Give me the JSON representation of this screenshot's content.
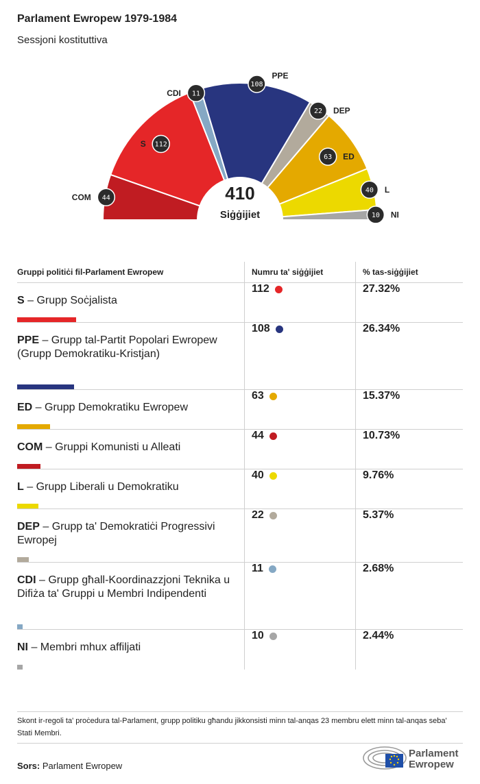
{
  "header": {
    "title": "Parlament Ewropew 1979-1984",
    "subtitle": "Sessjoni kostituttiva"
  },
  "chart_data": {
    "type": "pie",
    "subtype": "parliament-hemicycle",
    "total": 410,
    "total_label": "Siġġijiet",
    "series": [
      {
        "abbr": "COM",
        "seats": 44,
        "color": "#c01c22"
      },
      {
        "abbr": "S",
        "seats": 112,
        "color": "#e52628"
      },
      {
        "abbr": "CDI",
        "seats": 11,
        "color": "#85a8c4"
      },
      {
        "abbr": "PPE",
        "seats": 108,
        "color": "#28357f"
      },
      {
        "abbr": "DEP",
        "seats": 22,
        "color": "#b2aa9c"
      },
      {
        "abbr": "ED",
        "seats": 63,
        "color": "#e4a900"
      },
      {
        "abbr": "L",
        "seats": 40,
        "color": "#ecd900"
      },
      {
        "abbr": "NI",
        "seats": 10,
        "color": "#a6a6a6"
      }
    ]
  },
  "table": {
    "headers": [
      "Gruppi politiċi fil-Parlament Ewropew",
      "Numru ta' siġġijiet",
      "% tas-siġġijiet"
    ],
    "rows": [
      {
        "abbr": "S",
        "name": " – Grupp Soċjalista",
        "seats": "112",
        "pct": "27.32%",
        "color": "#e52628",
        "fraction": 0.2732
      },
      {
        "abbr": "PPE",
        "name": " – Grupp tal-Partit Popolari Ewropew (Grupp Demokratiku-Kristjan)",
        "seats": "108",
        "pct": "26.34%",
        "color": "#28357f",
        "fraction": 0.2634
      },
      {
        "abbr": "ED",
        "name": " – Grupp Demokratiku Ewropew",
        "seats": "63",
        "pct": "15.37%",
        "color": "#e4a900",
        "fraction": 0.1537
      },
      {
        "abbr": "COM",
        "name": " – Gruppi Komunisti u Alleati",
        "seats": "44",
        "pct": "10.73%",
        "color": "#c01c22",
        "fraction": 0.1073
      },
      {
        "abbr": "L",
        "name": " – Grupp Liberali u Demokratiku",
        "seats": "40",
        "pct": "9.76%",
        "color": "#ecd900",
        "fraction": 0.0976
      },
      {
        "abbr": "DEP",
        "name": " – Grupp ta' Demokratiċi Progressivi Ewropej",
        "seats": "22",
        "pct": "5.37%",
        "color": "#b2aa9c",
        "fraction": 0.0537
      },
      {
        "abbr": "CDI",
        "name": " – Grupp għall-Koordinazzjoni Teknika u Difiża ta' Gruppi u Membri Indipendenti",
        "seats": "11",
        "pct": "2.68%",
        "color": "#85a8c4",
        "fraction": 0.0268
      },
      {
        "abbr": "NI",
        "name": " – Membri mhux affiljati",
        "seats": "10",
        "pct": "2.44%",
        "color": "#a6a6a6",
        "fraction": 0.0244
      }
    ]
  },
  "footnote": "Skont ir-regoli ta' proċedura tal-Parlament, grupp politiku għandu jikkonsisti minn tal-anqas 23 membru elett minn tal-anqas seba' Stati Membri.",
  "source": {
    "label": "Sors:",
    "value": "Parlament Ewropew"
  },
  "logo": {
    "line1": "Parlament",
    "line2": "Ewropew"
  }
}
